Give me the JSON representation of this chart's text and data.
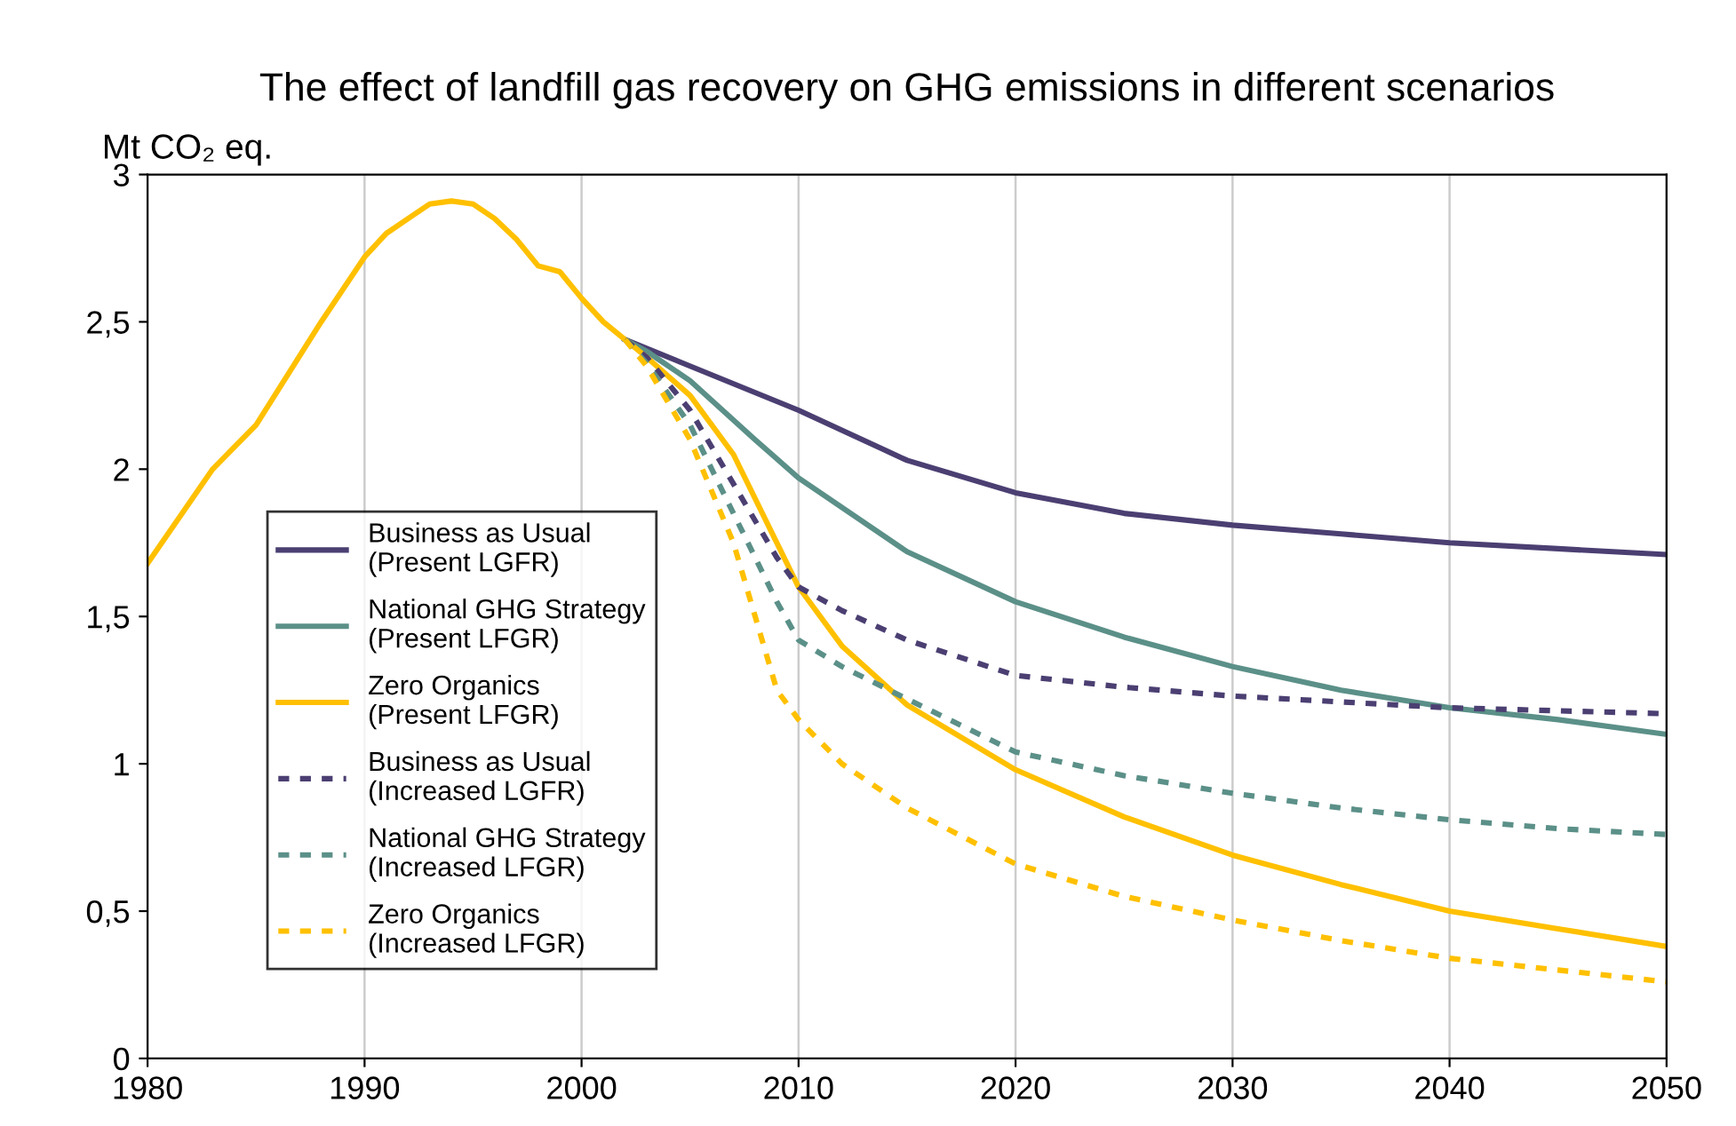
{
  "chart_data": {
    "type": "line",
    "title": "The effect of landfill gas recovery on GHG emissions in different scenarios",
    "ylabel": "Mt CO₂ eq.",
    "xlim": [
      1980,
      2050
    ],
    "xticks": [
      1980,
      1990,
      2000,
      2010,
      2020,
      2030,
      2040,
      2050
    ],
    "ylim": [
      0,
      3
    ],
    "yticks": [
      {
        "value": 0,
        "label": "0"
      },
      {
        "value": 0.5,
        "label": "0,5"
      },
      {
        "value": 1,
        "label": "1"
      },
      {
        "value": 1.5,
        "label": "1,5"
      },
      {
        "value": 2,
        "label": "2"
      },
      {
        "value": 2.5,
        "label": "2,5"
      },
      {
        "value": 3,
        "label": "3"
      }
    ],
    "grid": "x",
    "legend": "left",
    "marker": "none",
    "series": [
      {
        "name": "Business as Usual\n(Present LGFR)",
        "color": "#4b3f72",
        "line_style": "solid",
        "x": [
          2002,
          2005,
          2010,
          2015,
          2020,
          2025,
          2030,
          2035,
          2040,
          2045,
          2050
        ],
        "values": [
          2.44,
          2.35,
          2.2,
          2.03,
          1.92,
          1.85,
          1.81,
          1.78,
          1.75,
          1.73,
          1.71
        ]
      },
      {
        "name": "National GHG Strategy\n(Present LFGR)",
        "color": "#5b9088",
        "line_style": "solid",
        "x": [
          2002,
          2003,
          2005,
          2008,
          2010,
          2015,
          2020,
          2025,
          2030,
          2035,
          2040,
          2045,
          2050
        ],
        "values": [
          2.44,
          2.4,
          2.3,
          2.1,
          1.97,
          1.72,
          1.55,
          1.43,
          1.33,
          1.25,
          1.19,
          1.15,
          1.1
        ]
      },
      {
        "name": "Zero Organics\n(Present LFGR)",
        "color": "#ffc000",
        "line_style": "solid",
        "x": [
          1980,
          1983,
          1985,
          1988,
          1990,
          1991,
          1992,
          1993,
          1994,
          1995,
          1996,
          1997,
          1998,
          1999,
          2000,
          2001,
          2002,
          2003,
          2005,
          2007,
          2009,
          2010,
          2012,
          2015,
          2020,
          2025,
          2030,
          2035,
          2040,
          2045,
          2050
        ],
        "values": [
          1.68,
          2.0,
          2.15,
          2.5,
          2.72,
          2.8,
          2.85,
          2.9,
          2.91,
          2.9,
          2.85,
          2.78,
          2.69,
          2.67,
          2.58,
          2.5,
          2.44,
          2.38,
          2.25,
          2.05,
          1.75,
          1.6,
          1.4,
          1.2,
          0.98,
          0.82,
          0.69,
          0.59,
          0.5,
          0.44,
          0.38
        ]
      },
      {
        "name": "Business as Usual\n(Increased LGFR)",
        "color": "#4b3f72",
        "line_style": "dashed",
        "x": [
          2002,
          2003,
          2005,
          2007,
          2009,
          2010,
          2012,
          2015,
          2020,
          2025,
          2030,
          2040,
          2050
        ],
        "values": [
          2.44,
          2.38,
          2.2,
          1.95,
          1.7,
          1.6,
          1.52,
          1.42,
          1.3,
          1.26,
          1.23,
          1.19,
          1.17
        ]
      },
      {
        "name": "National GHG Strategy\n(Increased LFGR)",
        "color": "#5b9088",
        "line_style": "dashed",
        "x": [
          2002,
          2003,
          2005,
          2007,
          2009,
          2010,
          2012,
          2015,
          2020,
          2025,
          2030,
          2035,
          2040,
          2045,
          2050
        ],
        "values": [
          2.44,
          2.36,
          2.15,
          1.85,
          1.55,
          1.42,
          1.33,
          1.22,
          1.04,
          0.96,
          0.9,
          0.85,
          0.81,
          0.78,
          0.76
        ]
      },
      {
        "name": "Zero Organics\n(Increased LFGR)",
        "color": "#ffc000",
        "line_style": "dashed",
        "x": [
          2002,
          2003,
          2005,
          2007,
          2008,
          2009,
          2010,
          2012,
          2015,
          2020,
          2025,
          2030,
          2035,
          2040,
          2045,
          2050
        ],
        "values": [
          2.44,
          2.35,
          2.1,
          1.75,
          1.5,
          1.25,
          1.15,
          1.0,
          0.85,
          0.66,
          0.55,
          0.47,
          0.4,
          0.34,
          0.3,
          0.26
        ]
      }
    ]
  }
}
